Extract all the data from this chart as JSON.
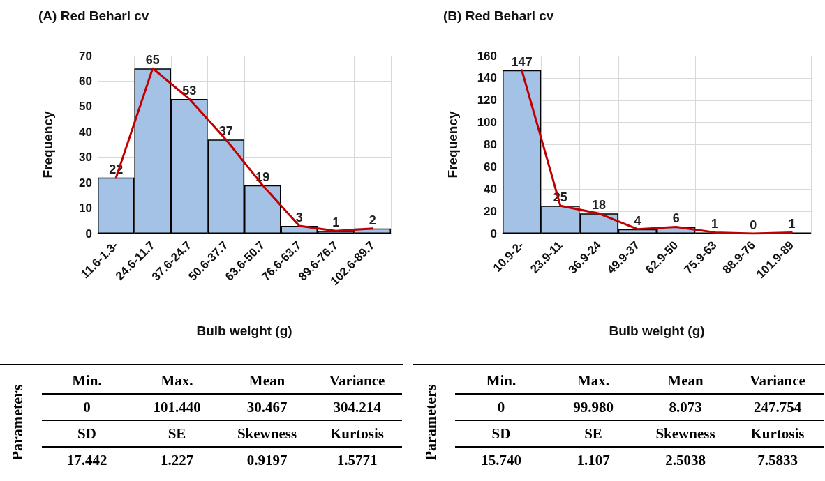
{
  "chart_data": [
    {
      "type": "bar",
      "title": "(A) Red Behari cv",
      "xlabel": "Bulb weight (g)",
      "ylabel": "Frequency",
      "categories": [
        "11.6-1.3-",
        "24.6-11.7",
        "37.6-24.7",
        "50.6-37.7",
        "63.6-50.7",
        "76.6-63.7",
        "89.6-76.7",
        "102.6-89.7"
      ],
      "series": [
        {
          "type": "bar",
          "color": "#a4c2e6",
          "values": [
            22,
            65,
            53,
            37,
            19,
            3,
            1,
            2
          ],
          "value_labels": [
            "22",
            "65",
            "53",
            "37",
            "19",
            "3",
            "1",
            "2"
          ]
        },
        {
          "type": "line",
          "color": "#c00000",
          "values": [
            22,
            65,
            53,
            37,
            19,
            3,
            1,
            2
          ]
        }
      ],
      "ylim": [
        0,
        70
      ],
      "yticks": [
        0,
        10,
        20,
        30,
        40,
        50,
        60,
        70
      ],
      "grid": true,
      "marker": "none",
      "line_style": "solid"
    },
    {
      "type": "bar",
      "title": "(B) Red Behari cv",
      "xlabel": "Bulb weight (g)",
      "ylabel": "Frequency",
      "categories": [
        "10.9-2-",
        "23.9-11",
        "36.9-24",
        "49.9-37",
        "62.9-50",
        "75.9-63",
        "88.9-76",
        "101.9-89"
      ],
      "series": [
        {
          "type": "bar",
          "color": "#a4c2e6",
          "values": [
            147,
            25,
            18,
            4,
            6,
            1,
            0,
            1
          ],
          "value_labels": [
            "147",
            "25",
            "18",
            "4",
            "6",
            "1",
            "0",
            "1"
          ]
        },
        {
          "type": "line",
          "color": "#c00000",
          "values": [
            147,
            25,
            18,
            4,
            6,
            1,
            0,
            1
          ]
        }
      ],
      "ylim": [
        0,
        160
      ],
      "yticks": [
        0,
        20,
        40,
        60,
        80,
        100,
        120,
        140,
        160
      ],
      "grid": true,
      "marker": "none",
      "line_style": "solid"
    },
    {
      "type": "other",
      "ylabel": "Parameters",
      "annotations": [
        "Min.",
        "Max.",
        "Mean",
        "Variance",
        "0",
        "101.440",
        "30.467",
        "304.214",
        "SD",
        "SE",
        "Skewness",
        "Kurtosis",
        "17.442",
        "1.227",
        "0.9197",
        "1.5771"
      ]
    },
    {
      "type": "other",
      "ylabel": "Parameters",
      "annotations": [
        "Min.",
        "Max.",
        "Mean",
        "Variance",
        "0",
        "99.980",
        "8.073",
        "247.754",
        "SD",
        "SE",
        "Skewness",
        "Kurtosis",
        "15.740",
        "1.107",
        "2.5038",
        "7.5833"
      ]
    }
  ]
}
